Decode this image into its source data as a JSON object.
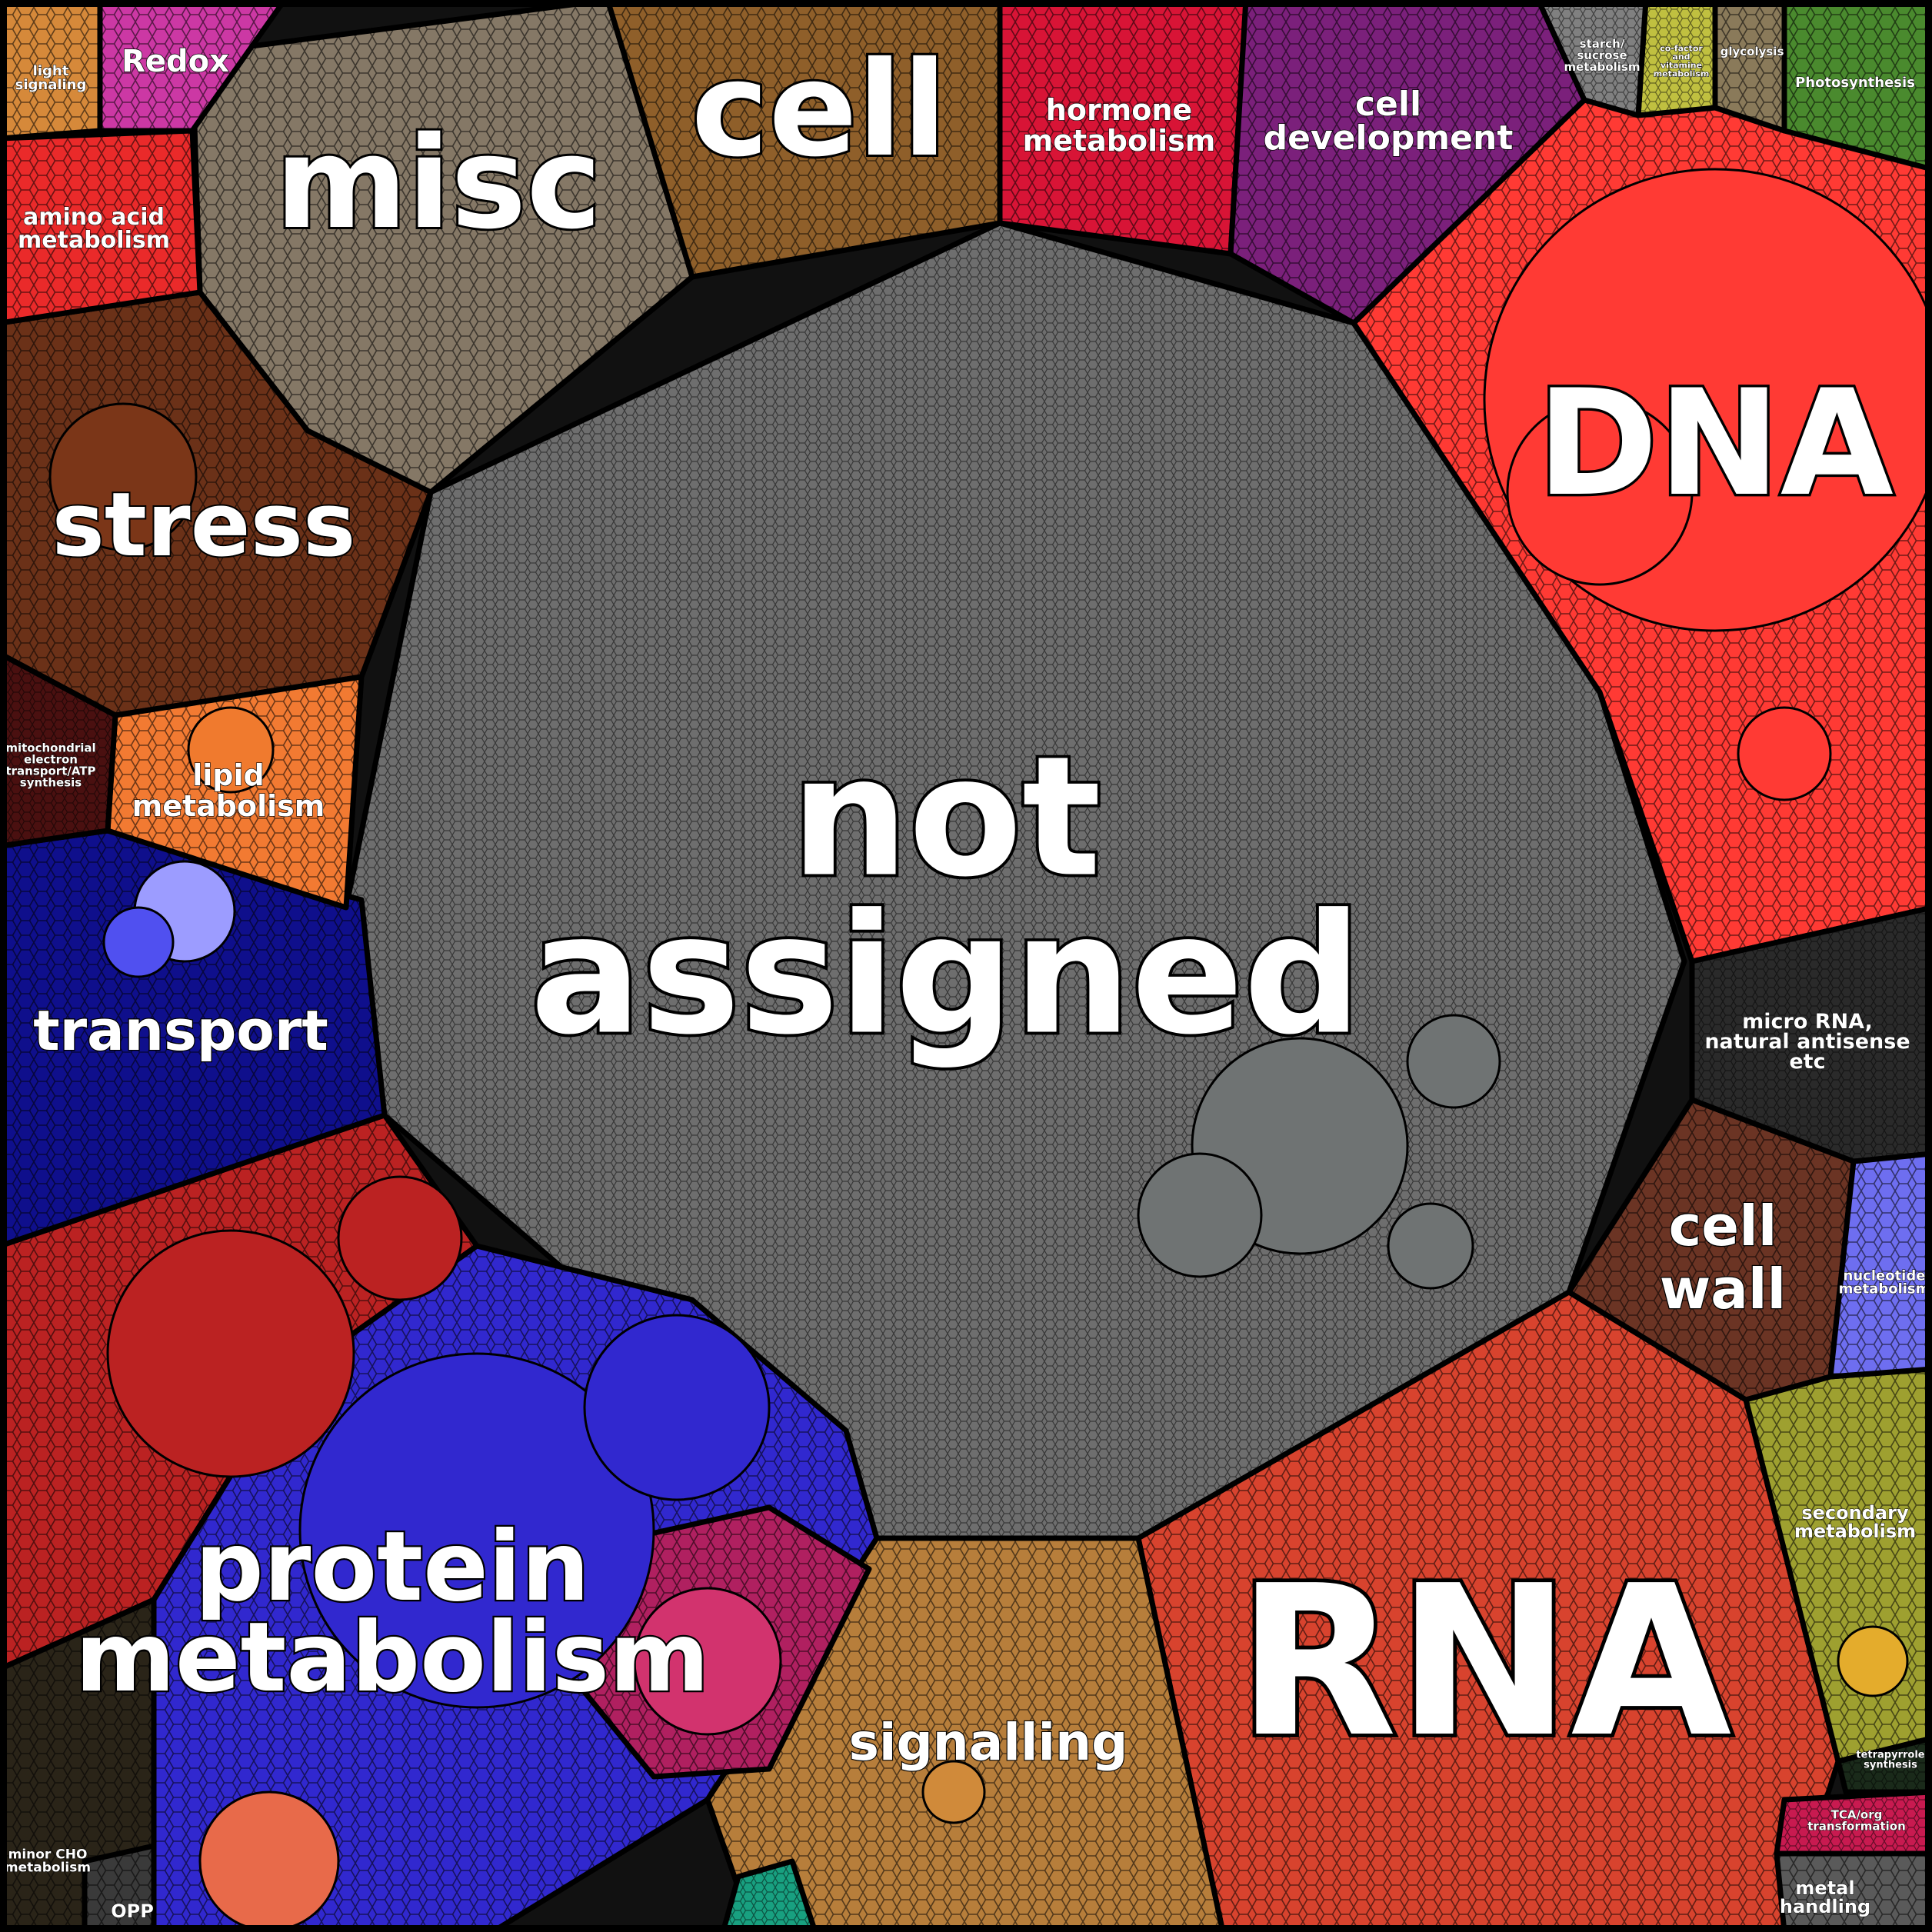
{
  "diagram": {
    "type": "voronoi-treemap",
    "categories": [
      {
        "key": "not_assigned",
        "lines": [
          "not",
          "assigned"
        ],
        "color": "#6e6e6e"
      },
      {
        "key": "dna",
        "lines": [
          "DNA"
        ],
        "color": "#ff3a34"
      },
      {
        "key": "rna",
        "lines": [
          "RNA"
        ],
        "color": "#d8432e"
      },
      {
        "key": "protein_metabolism",
        "lines": [
          "protein",
          "metabolism"
        ],
        "color": "#3128cf"
      },
      {
        "key": "protein_red",
        "lines": [],
        "color": "#bb2222"
      },
      {
        "key": "misc",
        "lines": [
          "misc"
        ],
        "color": "#857866"
      },
      {
        "key": "cell",
        "lines": [
          "cell"
        ],
        "color": "#8f5f2a"
      },
      {
        "key": "stress",
        "lines": [
          "stress"
        ],
        "color": "#6b3118"
      },
      {
        "key": "transport",
        "lines": [
          "transport"
        ],
        "color": "#0f0f8c"
      },
      {
        "key": "signalling",
        "lines": [
          "signalling"
        ],
        "color": "#b77e3b"
      },
      {
        "key": "hormone_metabolism",
        "lines": [
          "hormone",
          "metabolism"
        ],
        "color": "#d81436"
      },
      {
        "key": "cell_development",
        "lines": [
          "cell",
          "development"
        ],
        "color": "#7b207b"
      },
      {
        "key": "cell_wall",
        "lines": [
          "cell",
          "wall"
        ],
        "color": "#6b3424"
      },
      {
        "key": "micro_rna",
        "lines": [
          "micro RNA,",
          "natural antisense",
          "etc"
        ],
        "color": "#2a2a2a"
      },
      {
        "key": "lipid_metabolism",
        "lines": [
          "lipid",
          "metabolism"
        ],
        "color": "#f27a32"
      },
      {
        "key": "amino_acid_metabolism",
        "lines": [
          "amino acid",
          "metabolism"
        ],
        "color": "#ea2a2a"
      },
      {
        "key": "redox",
        "lines": [
          "Redox"
        ],
        "color": "#cc38a4"
      },
      {
        "key": "light_signaling",
        "lines": [
          "light",
          "signaling"
        ],
        "color": "#d6893a"
      },
      {
        "key": "mitochondrial",
        "lines": [
          "mitochondrial",
          "electron",
          "transport/ATP",
          "synthesis"
        ],
        "color": "#4a1010"
      },
      {
        "key": "secondary_metabolism",
        "lines": [
          "secondary",
          "metabolism"
        ],
        "color": "#9ea030"
      },
      {
        "key": "nucleotide_metabolism",
        "lines": [
          "nucleotide",
          "metabolism"
        ],
        "color": "#6e6ef0"
      },
      {
        "key": "photosynthesis",
        "lines": [
          "Photosynthesis"
        ],
        "color": "#4a8a2e"
      },
      {
        "key": "glycolysis",
        "lines": [
          "glycolysis"
        ],
        "color": "#8a7a5a"
      },
      {
        "key": "cofactor",
        "lines": [
          "co-factor",
          "and",
          "vitamine",
          "metabolism"
        ],
        "color": "#c0c040"
      },
      {
        "key": "starch",
        "lines": [
          "starch/",
          "sucrose",
          "metabolism"
        ],
        "color": "#808080"
      },
      {
        "key": "tetrapyrrole",
        "lines": [
          "tetrapyrrole",
          "synthesis"
        ],
        "color": "#1a2a1a"
      },
      {
        "key": "tca",
        "lines": [
          "TCA/org",
          "transformation"
        ],
        "color": "#c81a50"
      },
      {
        "key": "metal_handling",
        "lines": [
          "metal",
          "handling"
        ],
        "color": "#5a5a5a"
      },
      {
        "key": "minor_cho",
        "lines": [
          "minor CHO",
          "metabolism"
        ],
        "color": "#2a2418"
      },
      {
        "key": "opp",
        "lines": [
          "OPP"
        ],
        "color": "#3a3a3a"
      },
      {
        "key": "pink_cluster",
        "lines": [],
        "color": "#b02060"
      },
      {
        "key": "teal_small",
        "lines": [],
        "color": "#18a080"
      }
    ]
  }
}
